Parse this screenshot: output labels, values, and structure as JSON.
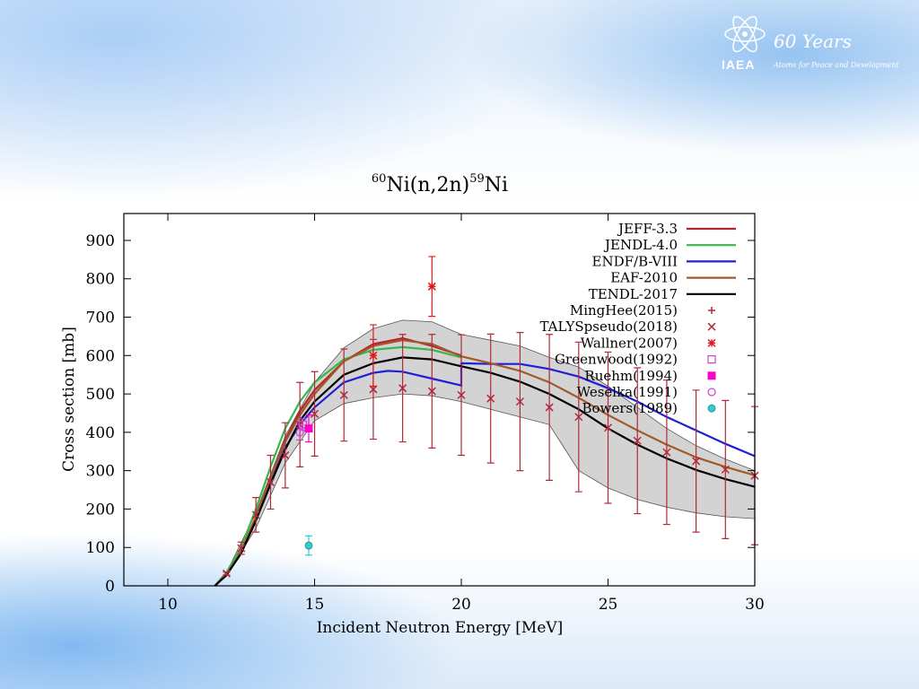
{
  "logo": {
    "years": "60 Years",
    "tagline": "Atoms for Peace and Development",
    "org": "IAEA"
  },
  "chart_data": {
    "type": "line",
    "title": {
      "sup_left": "60",
      "main": "Ni(n,2n)",
      "sup_mid": "59",
      "tail": "Ni"
    },
    "xlabel": "Incident Neutron Energy [MeV]",
    "ylabel": "Cross section [mb]",
    "xlim": [
      8.5,
      30
    ],
    "ylim": [
      0,
      970
    ],
    "xticks": [
      10,
      15,
      20,
      25,
      30
    ],
    "yticks": [
      0,
      100,
      200,
      300,
      400,
      500,
      600,
      700,
      800,
      900
    ],
    "uncertainty_band": {
      "upper": [
        [
          11.6,
          0
        ],
        [
          12,
          35
        ],
        [
          13,
          190
        ],
        [
          14,
          390
        ],
        [
          15,
          530
        ],
        [
          16,
          620
        ],
        [
          17,
          670
        ],
        [
          18,
          692
        ],
        [
          19,
          688
        ],
        [
          20,
          655
        ],
        [
          21,
          640
        ],
        [
          22,
          625
        ],
        [
          23,
          595
        ],
        [
          24,
          570
        ],
        [
          25,
          520
        ],
        [
          26,
          465
        ],
        [
          27,
          410
        ],
        [
          28,
          365
        ],
        [
          29,
          330
        ],
        [
          30,
          300
        ]
      ],
      "lower": [
        [
          11.6,
          0
        ],
        [
          12,
          25
        ],
        [
          13,
          150
        ],
        [
          14,
          320
        ],
        [
          15,
          430
        ],
        [
          16,
          475
        ],
        [
          17,
          490
        ],
        [
          18,
          500
        ],
        [
          19,
          495
        ],
        [
          20,
          480
        ],
        [
          21,
          460
        ],
        [
          22,
          440
        ],
        [
          23,
          420
        ],
        [
          23.5,
          360
        ],
        [
          24,
          300
        ],
        [
          25,
          255
        ],
        [
          26,
          225
        ],
        [
          27,
          205
        ],
        [
          28,
          190
        ],
        [
          29,
          180
        ],
        [
          30,
          175
        ]
      ]
    },
    "series": [
      {
        "name": "JEFF-3.3",
        "color": "#b3242c",
        "points": [
          [
            11.6,
            0
          ],
          [
            12,
            30
          ],
          [
            12.5,
            90
          ],
          [
            13,
            180
          ],
          [
            13.5,
            280
          ],
          [
            14,
            380
          ],
          [
            14.5,
            455
          ],
          [
            15,
            510
          ],
          [
            16,
            585
          ],
          [
            17,
            630
          ],
          [
            18,
            645
          ],
          [
            19,
            625
          ],
          [
            20,
            600
          ]
        ]
      },
      {
        "name": "JENDL-4.0",
        "color": "#3cb54a",
        "points": [
          [
            11.6,
            0
          ],
          [
            12,
            35
          ],
          [
            12.5,
            100
          ],
          [
            13,
            200
          ],
          [
            13.5,
            310
          ],
          [
            14,
            410
          ],
          [
            14.5,
            480
          ],
          [
            15,
            530
          ],
          [
            16,
            590
          ],
          [
            17,
            615
          ],
          [
            18,
            622
          ],
          [
            19,
            615
          ],
          [
            20,
            595
          ]
        ]
      },
      {
        "name": "ENDF/B-VIII",
        "color": "#1f1fd8",
        "points": [
          [
            11.6,
            0
          ],
          [
            12,
            30
          ],
          [
            12.5,
            85
          ],
          [
            13,
            175
          ],
          [
            13.5,
            270
          ],
          [
            14,
            360
          ],
          [
            14.5,
            420
          ],
          [
            15,
            465
          ],
          [
            16,
            530
          ],
          [
            17,
            555
          ],
          [
            17.5,
            560
          ],
          [
            18,
            558
          ],
          [
            19,
            540
          ],
          [
            20,
            522
          ],
          [
            20,
            580
          ],
          [
            21,
            578
          ],
          [
            22,
            578
          ],
          [
            23,
            565
          ],
          [
            24,
            545
          ],
          [
            25,
            515
          ],
          [
            26,
            480
          ],
          [
            27,
            440
          ],
          [
            28,
            405
          ],
          [
            29,
            370
          ],
          [
            30,
            338
          ]
        ]
      },
      {
        "name": "EAF-2010",
        "color": "#a3582a",
        "points": [
          [
            11.6,
            0
          ],
          [
            12,
            30
          ],
          [
            12.5,
            88
          ],
          [
            13,
            180
          ],
          [
            13.5,
            280
          ],
          [
            14,
            375
          ],
          [
            14.5,
            445
          ],
          [
            15,
            500
          ],
          [
            16,
            585
          ],
          [
            17,
            625
          ],
          [
            18,
            640
          ],
          [
            19,
            630
          ],
          [
            20,
            598
          ],
          [
            21,
            580
          ],
          [
            22,
            560
          ],
          [
            23,
            530
          ],
          [
            24,
            490
          ],
          [
            25,
            445
          ],
          [
            26,
            405
          ],
          [
            27,
            368
          ],
          [
            28,
            335
          ],
          [
            29,
            310
          ],
          [
            30,
            288
          ]
        ]
      },
      {
        "name": "TENDL-2017",
        "color": "#000000",
        "points": [
          [
            11.6,
            0
          ],
          [
            12,
            28
          ],
          [
            12.5,
            85
          ],
          [
            13,
            170
          ],
          [
            13.5,
            265
          ],
          [
            14,
            355
          ],
          [
            14.5,
            430
          ],
          [
            15,
            480
          ],
          [
            16,
            550
          ],
          [
            17,
            580
          ],
          [
            18,
            595
          ],
          [
            19,
            590
          ],
          [
            20,
            572
          ],
          [
            21,
            555
          ],
          [
            22,
            532
          ],
          [
            23,
            500
          ],
          [
            24,
            460
          ],
          [
            25,
            410
          ],
          [
            26,
            368
          ],
          [
            27,
            332
          ],
          [
            28,
            302
          ],
          [
            29,
            278
          ],
          [
            30,
            258
          ]
        ]
      }
    ],
    "markers": [
      {
        "name": "MingHee(2015)",
        "symbol": "plus",
        "color": "#b02a3a"
      },
      {
        "name": "TALYSpseudo(2018)",
        "symbol": "cross",
        "color": "#b02a3a",
        "points": [
          [
            12,
            32,
            4
          ],
          [
            12.5,
            98,
            16
          ],
          [
            13,
            185,
            45
          ],
          [
            13.5,
            270,
            70
          ],
          [
            14,
            340,
            85
          ],
          [
            14.5,
            420,
            110
          ],
          [
            15,
            448,
            110
          ],
          [
            16,
            497,
            120
          ],
          [
            17,
            512,
            130
          ],
          [
            18,
            515,
            140
          ],
          [
            19,
            507,
            148
          ],
          [
            20,
            497,
            157
          ],
          [
            21,
            488,
            168
          ],
          [
            22,
            480,
            180
          ],
          [
            23,
            465,
            190
          ],
          [
            24,
            440,
            195
          ],
          [
            25,
            412,
            197
          ],
          [
            26,
            378,
            190
          ],
          [
            27,
            348,
            188
          ],
          [
            28,
            325,
            185
          ],
          [
            29,
            303,
            180
          ],
          [
            30,
            287,
            180
          ]
        ]
      },
      {
        "name": "Wallner(2007)",
        "symbol": "star",
        "color": "#e31a1c",
        "points": [
          [
            17,
            600,
            80
          ],
          [
            19,
            780,
            78
          ]
        ]
      },
      {
        "name": "Greenwood(1992)",
        "symbol": "open-square",
        "color": "#cc44cc",
        "points": [
          [
            14.6,
            420,
            15
          ]
        ]
      },
      {
        "name": "Ruehm(1994)",
        "symbol": "filled-square",
        "color": "#ff00cc",
        "points": [
          [
            14.8,
            410,
            35
          ]
        ]
      },
      {
        "name": "Weselka(1991)",
        "symbol": "open-circle",
        "color": "#cc44cc",
        "points": [
          [
            14.5,
            400,
            20
          ]
        ]
      },
      {
        "name": "Bowers(1989)",
        "symbol": "filled-circle",
        "color": "#33cccc",
        "points": [
          [
            14.8,
            105,
            25
          ]
        ]
      }
    ]
  }
}
